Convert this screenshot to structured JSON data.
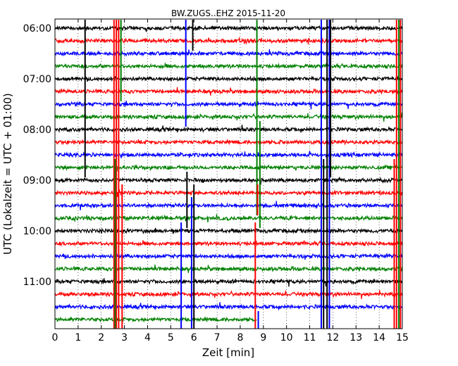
{
  "chart_data": {
    "type": "line",
    "title": "BW.ZUGS..EHZ 2015-11-20",
    "xlabel": "Zeit  [min]",
    "ylabel": "UTC (Lokalzeit = UTC + 01:00)",
    "xlim": [
      0,
      15
    ],
    "x_ticks": [
      "0",
      "1",
      "2",
      "3",
      "4",
      "5",
      "6",
      "7",
      "8",
      "9",
      "10",
      "11",
      "12",
      "13",
      "14",
      "15"
    ],
    "y_ticks": [
      "06:00",
      "07:00",
      "08:00",
      "09:00",
      "10:00",
      "11:00"
    ],
    "grid": "vertical dotted",
    "trace_interval_minutes": 15,
    "series": [
      {
        "start": "06:00",
        "color": "#000000",
        "quiet_from_min": 15
      },
      {
        "start": "06:15",
        "color": "#ff0000",
        "quiet_from_min": 15
      },
      {
        "start": "06:30",
        "color": "#0000ff",
        "quiet_from_min": 15
      },
      {
        "start": "06:45",
        "color": "#008000",
        "quiet_from_min": 15
      },
      {
        "start": "07:00",
        "color": "#000000",
        "quiet_from_min": 15
      },
      {
        "start": "07:15",
        "color": "#ff0000",
        "quiet_from_min": 15
      },
      {
        "start": "07:30",
        "color": "#0000ff",
        "quiet_from_min": 15
      },
      {
        "start": "07:45",
        "color": "#008000",
        "quiet_from_min": 15
      },
      {
        "start": "08:00",
        "color": "#000000",
        "quiet_from_min": 15
      },
      {
        "start": "08:15",
        "color": "#ff0000",
        "quiet_from_min": 15
      },
      {
        "start": "08:30",
        "color": "#0000ff",
        "quiet_from_min": 15
      },
      {
        "start": "08:45",
        "color": "#008000",
        "quiet_from_min": 15
      },
      {
        "start": "09:00",
        "color": "#000000",
        "quiet_from_min": 15
      },
      {
        "start": "09:15",
        "color": "#ff0000",
        "quiet_from_min": 15
      },
      {
        "start": "09:30",
        "color": "#0000ff",
        "quiet_from_min": 15
      },
      {
        "start": "09:45",
        "color": "#008000",
        "quiet_from_min": 15
      },
      {
        "start": "10:00",
        "color": "#000000",
        "quiet_from_min": 15
      },
      {
        "start": "10:15",
        "color": "#ff0000",
        "quiet_from_min": 15
      },
      {
        "start": "10:30",
        "color": "#0000ff",
        "quiet_from_min": 15
      },
      {
        "start": "10:45",
        "color": "#008000",
        "quiet_from_min": 15
      },
      {
        "start": "11:00",
        "color": "#000000",
        "quiet_from_min": 15
      },
      {
        "start": "11:15",
        "color": "#ff0000",
        "quiet_from_min": 15
      },
      {
        "start": "11:30",
        "color": "#0000ff",
        "quiet_from_min": 15
      },
      {
        "start": "11:45",
        "color": "#008000",
        "quiet_from_min": 8.7
      }
    ],
    "spikes": [
      {
        "min": 1.3,
        "from_trace": 0,
        "to_trace": 12,
        "color": "#000000"
      },
      {
        "min": 2.55,
        "from_trace": 0,
        "to_trace": 24,
        "color": "#ff0000"
      },
      {
        "min": 2.65,
        "from_trace": 0,
        "to_trace": 24,
        "color": "#ff0000"
      },
      {
        "min": 2.75,
        "from_trace": 0,
        "to_trace": 24,
        "color": "#ff0000"
      },
      {
        "min": 2.6,
        "from_trace": 11,
        "to_trace": 24,
        "color": "#008000"
      },
      {
        "min": 2.9,
        "from_trace": 13,
        "to_trace": 24,
        "color": "#ff0000"
      },
      {
        "min": 2.85,
        "from_trace": 0,
        "to_trace": 6,
        "color": "#008000"
      },
      {
        "min": 5.45,
        "from_trace": 16,
        "to_trace": 24,
        "color": "#0000ff"
      },
      {
        "min": 5.65,
        "from_trace": 0,
        "to_trace": 8,
        "color": "#0000ff"
      },
      {
        "min": 5.7,
        "from_trace": 12,
        "to_trace": 16,
        "color": "#000000"
      },
      {
        "min": 5.9,
        "from_trace": 14,
        "to_trace": 24,
        "color": "#0000ff"
      },
      {
        "min": 5.95,
        "from_trace": 0,
        "to_trace": 2,
        "color": "#000000"
      },
      {
        "min": 6.0,
        "from_trace": 13,
        "to_trace": 24,
        "color": "#000000"
      },
      {
        "min": 8.65,
        "from_trace": 16,
        "to_trace": 24,
        "color": "#ff0000"
      },
      {
        "min": 8.72,
        "from_trace": 0,
        "to_trace": 15,
        "color": "#008000"
      },
      {
        "min": 8.75,
        "from_trace": 13,
        "to_trace": 15,
        "color": "#ff0000"
      },
      {
        "min": 8.78,
        "from_trace": 23,
        "to_trace": 24,
        "color": "#0000ff"
      },
      {
        "min": 8.85,
        "from_trace": 8,
        "to_trace": 16,
        "color": "#008000"
      },
      {
        "min": 11.5,
        "from_trace": 0,
        "to_trace": 24,
        "color": "#0000ff"
      },
      {
        "min": 11.6,
        "from_trace": 11,
        "to_trace": 24,
        "color": "#000000"
      },
      {
        "min": 11.75,
        "from_trace": 0,
        "to_trace": 24,
        "color": "#000000"
      },
      {
        "min": 11.85,
        "from_trace": 0,
        "to_trace": 24,
        "color": "#0000ff"
      },
      {
        "min": 11.9,
        "from_trace": 0,
        "to_trace": 12,
        "color": "#000000"
      },
      {
        "min": 14.65,
        "from_trace": 11,
        "to_trace": 24,
        "color": "#ff0000"
      },
      {
        "min": 14.75,
        "from_trace": 0,
        "to_trace": 24,
        "color": "#ff0000"
      },
      {
        "min": 14.85,
        "from_trace": 0,
        "to_trace": 24,
        "color": "#008000"
      },
      {
        "min": 14.92,
        "from_trace": 0,
        "to_trace": 24,
        "color": "#ff0000"
      }
    ]
  }
}
